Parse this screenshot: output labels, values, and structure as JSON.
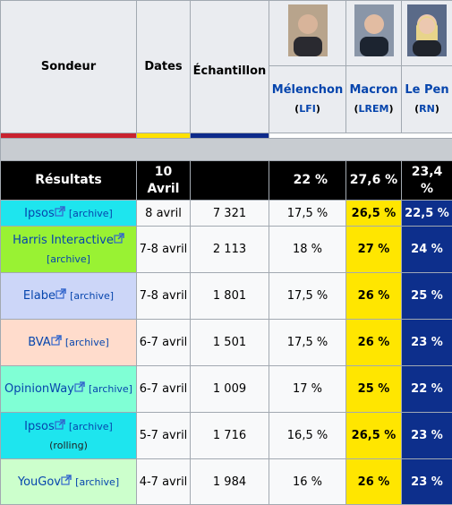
{
  "table": {
    "header": {
      "pollster": "Sondeur",
      "dates": "Dates",
      "sample": "Échantillon",
      "candidates": [
        {
          "name": "Mélenchon",
          "party": "LFI",
          "color": "#c9222f"
        },
        {
          "name": "Macron",
          "party": "LREM",
          "color": "#ffe100"
        },
        {
          "name": "Le Pen",
          "party": "RN",
          "color": "#0d2a8a"
        }
      ]
    },
    "results": {
      "label": "Résultats",
      "date": "10 Avril",
      "values": [
        "22 %",
        "27,6 %",
        "23,4 %"
      ]
    },
    "rows": [
      {
        "pollster": "Ipsos",
        "archive": "[archive]",
        "dates": "8 avril",
        "sample": "7 321",
        "values": [
          "17,5 %",
          "26,5 %",
          "22,5 %"
        ],
        "color": "#1ee5ee"
      },
      {
        "pollster": "Harris Interactive",
        "archive": "[archive]",
        "dates": "7-8 avril",
        "sample": "2 113",
        "values": [
          "18 %",
          "27 %",
          "24 %"
        ],
        "color": "#99f233"
      },
      {
        "pollster": "Elabe",
        "archive": "[archive]",
        "dates": "7-8 avril",
        "sample": "1 801",
        "values": [
          "17,5 %",
          "26 %",
          "25 %"
        ],
        "color": "#ccd6f8"
      },
      {
        "pollster": "BVA",
        "archive": "[archive]",
        "dates": "6-7 avril",
        "sample": "1 501",
        "values": [
          "17,5 %",
          "26 %",
          "23 %"
        ],
        "color": "#ffdccc"
      },
      {
        "pollster": "OpinionWay",
        "archive": "[archive]",
        "dates": "6-7 avril",
        "sample": "1 009",
        "values": [
          "17 %",
          "25 %",
          "22 %"
        ],
        "color": "#80ffd5"
      },
      {
        "pollster": "Ipsos",
        "archive": "[archive]",
        "note": "(rolling)",
        "dates": "5-7 avril",
        "sample": "1 716",
        "values": [
          "16,5 %",
          "26,5 %",
          "23 %"
        ],
        "color": "#1ee5ee"
      },
      {
        "pollster": "YouGov",
        "archive": "[archive]",
        "dates": "4-7 avril",
        "sample": "1 984",
        "values": [
          "16 %",
          "26 %",
          "23 %"
        ],
        "color": "#ccffcc"
      }
    ]
  }
}
